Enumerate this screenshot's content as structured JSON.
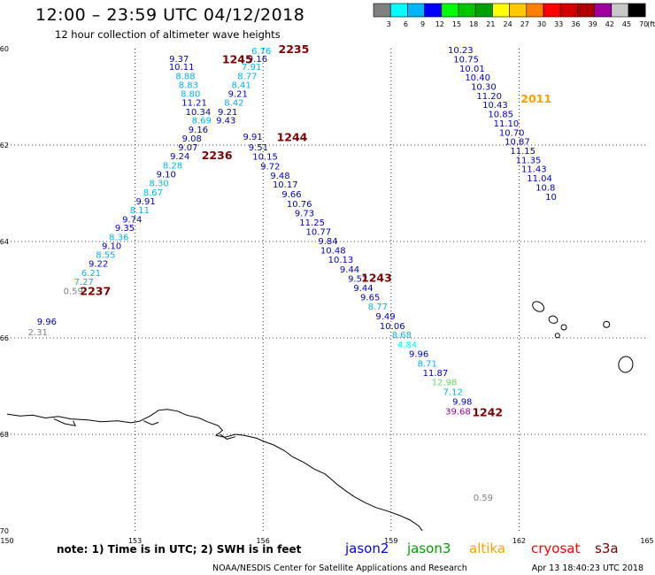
{
  "title": "12:00 – 23:59 UTC 04/12/2018",
  "subtitle": "12 hour collection of altimeter wave heights",
  "colorbar": {
    "colors": [
      "#808080",
      "#00ffff",
      "#00b4ff",
      "#0000ff",
      "#00ff00",
      "#00c800",
      "#00a000",
      "#ffff00",
      "#ffc800",
      "#ff8000",
      "#ff0000",
      "#d00000",
      "#b00000",
      "#a000a0",
      "#c8c8c8",
      "#000000"
    ],
    "labels": [
      "3",
      "6",
      "9",
      "12",
      "15",
      "18",
      "21",
      "24",
      "27",
      "30",
      "33",
      "36",
      "39",
      "42",
      "45",
      "70"
    ],
    "unit": "(ft)"
  },
  "axes": {
    "lon_range": [
      150,
      165
    ],
    "lat_range": [
      -60,
      -70
    ],
    "lon_ticks": [
      "150",
      "153",
      "156",
      "159",
      "162",
      "165"
    ],
    "lat_ticks": [
      "-60",
      "-62",
      "-64",
      "-66",
      "-68",
      "-70"
    ],
    "grid": "dotted"
  },
  "labels": [
    {
      "t": "6.76",
      "lon": 155.96,
      "lat": -60.04,
      "c": "#00b4ff"
    },
    {
      "t": "9.37",
      "lon": 154.03,
      "lat": -60.2,
      "c": "#0000c8"
    },
    {
      "t": "9.16",
      "lon": 155.87,
      "lat": -60.2,
      "c": "#0000c8"
    },
    {
      "t": "10.11",
      "lon": 154.09,
      "lat": -60.37,
      "c": "#0000c8"
    },
    {
      "t": "7.91",
      "lon": 155.73,
      "lat": -60.37,
      "c": "#00b4ff"
    },
    {
      "t": "8.88",
      "lon": 154.18,
      "lat": -60.56,
      "c": "#00b4ff"
    },
    {
      "t": "8.77",
      "lon": 155.63,
      "lat": -60.56,
      "c": "#00b4ff"
    },
    {
      "t": "8.83",
      "lon": 154.25,
      "lat": -60.74,
      "c": "#00b4ff"
    },
    {
      "t": "8.41",
      "lon": 155.49,
      "lat": -60.74,
      "c": "#00b4ff"
    },
    {
      "t": "8.80",
      "lon": 154.3,
      "lat": -60.93,
      "c": "#00b4ff"
    },
    {
      "t": "9.21",
      "lon": 155.41,
      "lat": -60.93,
      "c": "#0000c8"
    },
    {
      "t": "11.21",
      "lon": 154.39,
      "lat": -61.11,
      "c": "#0000c8"
    },
    {
      "t": "8.42",
      "lon": 155.32,
      "lat": -61.11,
      "c": "#00b4ff"
    },
    {
      "t": "10.34",
      "lon": 154.48,
      "lat": -61.3,
      "c": "#0000c8"
    },
    {
      "t": "9.21",
      "lon": 155.17,
      "lat": -61.3,
      "c": "#0000c8"
    },
    {
      "t": "8.69",
      "lon": 154.56,
      "lat": -61.48,
      "c": "#00b4ff"
    },
    {
      "t": "9.43",
      "lon": 155.13,
      "lat": -61.48,
      "c": "#0000c8"
    },
    {
      "t": "9.16",
      "lon": 154.48,
      "lat": -61.67,
      "c": "#0000c8"
    },
    {
      "t": "9.91",
      "lon": 155.76,
      "lat": -61.82,
      "c": "#0000c8"
    },
    {
      "t": "9.08",
      "lon": 154.33,
      "lat": -61.85,
      "c": "#0000c8"
    },
    {
      "t": "9.51",
      "lon": 155.89,
      "lat": -62.04,
      "c": "#0000c8"
    },
    {
      "t": "9.07",
      "lon": 154.24,
      "lat": -62.04,
      "c": "#0000c8"
    },
    {
      "t": "10.15",
      "lon": 156.05,
      "lat": -62.23,
      "c": "#0000c8"
    },
    {
      "t": "9.24",
      "lon": 154.05,
      "lat": -62.22,
      "c": "#0000c8"
    },
    {
      "t": "9.72",
      "lon": 156.17,
      "lat": -62.43,
      "c": "#0000c8"
    },
    {
      "t": "8.28",
      "lon": 153.88,
      "lat": -62.41,
      "c": "#00b4ff"
    },
    {
      "t": "9.48",
      "lon": 156.4,
      "lat": -62.62,
      "c": "#0000c8"
    },
    {
      "t": "9.10",
      "lon": 153.73,
      "lat": -62.6,
      "c": "#0000c8"
    },
    {
      "t": "10.17",
      "lon": 156.52,
      "lat": -62.81,
      "c": "#0000c8"
    },
    {
      "t": "8.30",
      "lon": 153.56,
      "lat": -62.78,
      "c": "#00b4ff"
    },
    {
      "t": "9.66",
      "lon": 156.67,
      "lat": -63.01,
      "c": "#0000c8"
    },
    {
      "t": "8.67",
      "lon": 153.42,
      "lat": -62.97,
      "c": "#00b4ff"
    },
    {
      "t": "10.76",
      "lon": 156.85,
      "lat": -63.21,
      "c": "#0000c8"
    },
    {
      "t": "9.91",
      "lon": 153.25,
      "lat": -63.16,
      "c": "#0000c8"
    },
    {
      "t": "9.73",
      "lon": 156.97,
      "lat": -63.4,
      "c": "#0000c8"
    },
    {
      "t": "8.11",
      "lon": 153.11,
      "lat": -63.34,
      "c": "#00b4ff"
    },
    {
      "t": "11.25",
      "lon": 157.15,
      "lat": -63.6,
      "c": "#0000c8"
    },
    {
      "t": "9.74",
      "lon": 152.93,
      "lat": -63.53,
      "c": "#0000c8"
    },
    {
      "t": "10.77",
      "lon": 157.3,
      "lat": -63.79,
      "c": "#0000c8"
    },
    {
      "t": "9.35",
      "lon": 152.76,
      "lat": -63.71,
      "c": "#0000c8"
    },
    {
      "t": "9.84",
      "lon": 157.52,
      "lat": -63.98,
      "c": "#0000c8"
    },
    {
      "t": "8.36",
      "lon": 152.62,
      "lat": -63.9,
      "c": "#00b4ff"
    },
    {
      "t": "10.48",
      "lon": 157.64,
      "lat": -64.17,
      "c": "#0000c8"
    },
    {
      "t": "9.10",
      "lon": 152.45,
      "lat": -64.08,
      "c": "#0000c8"
    },
    {
      "t": "10.13",
      "lon": 157.82,
      "lat": -64.37,
      "c": "#0000c8"
    },
    {
      "t": "8.55",
      "lon": 152.31,
      "lat": -64.27,
      "c": "#00b4ff"
    },
    {
      "t": "9.44",
      "lon": 158.03,
      "lat": -64.57,
      "c": "#0000c8"
    },
    {
      "t": "9.22",
      "lon": 152.14,
      "lat": -64.45,
      "c": "#0000c8"
    },
    {
      "t": "9.52",
      "lon": 158.22,
      "lat": -64.76,
      "c": "#0000c8"
    },
    {
      "t": "6.21",
      "lon": 151.97,
      "lat": -64.64,
      "c": "#00b4ff"
    },
    {
      "t": "9.44",
      "lon": 158.35,
      "lat": -64.95,
      "c": "#0000c8"
    },
    {
      "t": "7.27",
      "lon": 151.8,
      "lat": -64.83,
      "c": "#00b4ff"
    },
    {
      "t": "9.65",
      "lon": 158.51,
      "lat": -65.15,
      "c": "#0000c8"
    },
    {
      "t": "0.59",
      "lon": 151.55,
      "lat": -65.02,
      "c": "#808080"
    },
    {
      "t": "8.77",
      "lon": 158.69,
      "lat": -65.34,
      "c": "#00b4ff"
    },
    {
      "t": "9.49",
      "lon": 158.87,
      "lat": -65.54,
      "c": "#0000c8"
    },
    {
      "t": "9.96",
      "lon": 150.93,
      "lat": -65.65,
      "c": "#0000c8"
    },
    {
      "t": "10.06",
      "lon": 159.03,
      "lat": -65.74,
      "c": "#0000c8"
    },
    {
      "t": "2.31",
      "lon": 150.72,
      "lat": -65.87,
      "c": "#808080"
    },
    {
      "t": "8.68",
      "lon": 159.25,
      "lat": -65.93,
      "c": "#00b4ff"
    },
    {
      "t": "4.84",
      "lon": 159.38,
      "lat": -66.13,
      "c": "#00ffff"
    },
    {
      "t": "9.96",
      "lon": 159.65,
      "lat": -66.32,
      "c": "#0000c8"
    },
    {
      "t": "8.71",
      "lon": 159.85,
      "lat": -66.52,
      "c": "#00b4ff"
    },
    {
      "t": "11.87",
      "lon": 160.04,
      "lat": -66.72,
      "c": "#0000c8"
    },
    {
      "t": "12.98",
      "lon": 160.25,
      "lat": -66.91,
      "c": "#66dd66"
    },
    {
      "t": "7.12",
      "lon": 160.45,
      "lat": -67.11,
      "c": "#00b4ff"
    },
    {
      "t": "9.98",
      "lon": 160.67,
      "lat": -67.31,
      "c": "#0000c8"
    },
    {
      "t": "39.68",
      "lon": 160.57,
      "lat": -67.51,
      "c": "#a000a0"
    },
    {
      "t": "10.23",
      "lon": 160.63,
      "lat": -60.02,
      "c": "#0000c8"
    },
    {
      "t": "10.75",
      "lon": 160.76,
      "lat": -60.21,
      "c": "#0000c8"
    },
    {
      "t": "10.01",
      "lon": 160.9,
      "lat": -60.4,
      "c": "#0000c8"
    },
    {
      "t": "10.40",
      "lon": 161.03,
      "lat": -60.59,
      "c": "#0000c8"
    },
    {
      "t": "10.30",
      "lon": 161.17,
      "lat": -60.78,
      "c": "#0000c8"
    },
    {
      "t": "11.20",
      "lon": 161.3,
      "lat": -60.97,
      "c": "#0000c8"
    },
    {
      "t": "10.43",
      "lon": 161.44,
      "lat": -61.16,
      "c": "#0000c8"
    },
    {
      "t": "10.85",
      "lon": 161.57,
      "lat": -61.35,
      "c": "#0000c8"
    },
    {
      "t": "11.10",
      "lon": 161.7,
      "lat": -61.54,
      "c": "#0000c8"
    },
    {
      "t": "10.70",
      "lon": 161.83,
      "lat": -61.73,
      "c": "#0000c8"
    },
    {
      "t": "10.87",
      "lon": 161.96,
      "lat": -61.92,
      "c": "#0000c8"
    },
    {
      "t": "11.15",
      "lon": 162.09,
      "lat": -62.11,
      "c": "#0000c8"
    },
    {
      "t": "11.35",
      "lon": 162.22,
      "lat": -62.3,
      "c": "#0000c8"
    },
    {
      "t": "11.43",
      "lon": 162.35,
      "lat": -62.49,
      "c": "#0000c8"
    },
    {
      "t": "11.04",
      "lon": 162.48,
      "lat": -62.68,
      "c": "#0000c8"
    },
    {
      "t": "10.8",
      "lon": 162.62,
      "lat": -62.87,
      "c": "#0000c8"
    },
    {
      "t": "10",
      "lon": 162.75,
      "lat": -63.06,
      "c": "#0000c8"
    },
    {
      "t": "0.59",
      "lon": 161.16,
      "lat": -69.3,
      "c": "#808080"
    }
  ],
  "time_tags": [
    {
      "t": "2235",
      "lon": 156.72,
      "lat": -60.02,
      "c": "#800000"
    },
    {
      "t": "1245",
      "lon": 155.4,
      "lat": -60.23,
      "c": "#800000"
    },
    {
      "t": "1244",
      "lon": 156.68,
      "lat": -61.84,
      "c": "#800000"
    },
    {
      "t": "2236",
      "lon": 154.92,
      "lat": -62.22,
      "c": "#800000"
    },
    {
      "t": "1243",
      "lon": 158.66,
      "lat": -64.76,
      "c": "#800000"
    },
    {
      "t": "2237",
      "lon": 152.07,
      "lat": -65.04,
      "c": "#800000"
    },
    {
      "t": "1242",
      "lon": 161.26,
      "lat": -67.55,
      "c": "#800000"
    },
    {
      "t": "2011",
      "lon": 162.4,
      "lat": -61.05,
      "c": "#ffa000"
    }
  ],
  "footer": {
    "note": "note:  1) Time is in UTC;  2) SWH is in feet",
    "satellites": [
      {
        "name": "jason2",
        "color": "#0000ff"
      },
      {
        "name": "jason3",
        "color": "#00a000"
      },
      {
        "name": "altika",
        "color": "#ffa000"
      },
      {
        "name": "cryosat",
        "color": "#ff0000"
      },
      {
        "name": "s3a",
        "color": "#800000"
      }
    ],
    "credit": "NOAA/NESDIS Center for Satellite Applications and Research",
    "timestamp": "Apr 13 18:40:23 UTC 2018"
  }
}
